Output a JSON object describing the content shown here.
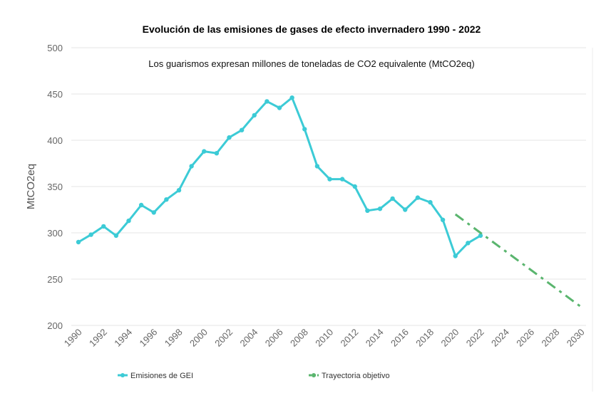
{
  "chart_data": {
    "type": "line",
    "title": "Evolución de las emisiones de gases de efecto invernadero 1990 - 2022",
    "subtitle": "Los guarismos expresan millones de toneladas de CO2 equivalente (MtCO2eq)",
    "ylabel": "MtCO2eq",
    "xlabel": "",
    "ylim": [
      200,
      500
    ],
    "xlim": [
      1990,
      2030
    ],
    "yticks": [
      "200",
      "250",
      "300",
      "350",
      "400",
      "450",
      "500"
    ],
    "xticks": [
      "1990",
      "1992",
      "1994",
      "1996",
      "1998",
      "2000",
      "2002",
      "2004",
      "2006",
      "2008",
      "2010",
      "2012",
      "2014",
      "2016",
      "2018",
      "2020",
      "2022",
      "2024",
      "2026",
      "2028",
      "2030"
    ],
    "grid": true,
    "legend_position": "bottom",
    "series": [
      {
        "name": "Emisiones de GEI",
        "color": "#3ccbd6",
        "style": "solid",
        "x": [
          1990,
          1991,
          1992,
          1993,
          1994,
          1995,
          1996,
          1997,
          1998,
          1999,
          2000,
          2001,
          2002,
          2003,
          2004,
          2005,
          2006,
          2007,
          2008,
          2009,
          2010,
          2011,
          2012,
          2013,
          2014,
          2015,
          2016,
          2017,
          2018,
          2019,
          2020,
          2021,
          2022
        ],
        "values": [
          290,
          298,
          307,
          297,
          313,
          330,
          322,
          336,
          346,
          372,
          388,
          386,
          403,
          411,
          427,
          442,
          435,
          446,
          412,
          372,
          358,
          358,
          350,
          324,
          326,
          337,
          325,
          338,
          333,
          314,
          275,
          289,
          297
        ]
      },
      {
        "name": "Trayectoria objetivo",
        "color": "#5ab56e",
        "style": "dashdot",
        "x": [
          2020,
          2022,
          2024,
          2026,
          2028,
          2030
        ],
        "values": [
          320,
          300,
          280,
          260,
          240,
          220
        ]
      }
    ]
  }
}
